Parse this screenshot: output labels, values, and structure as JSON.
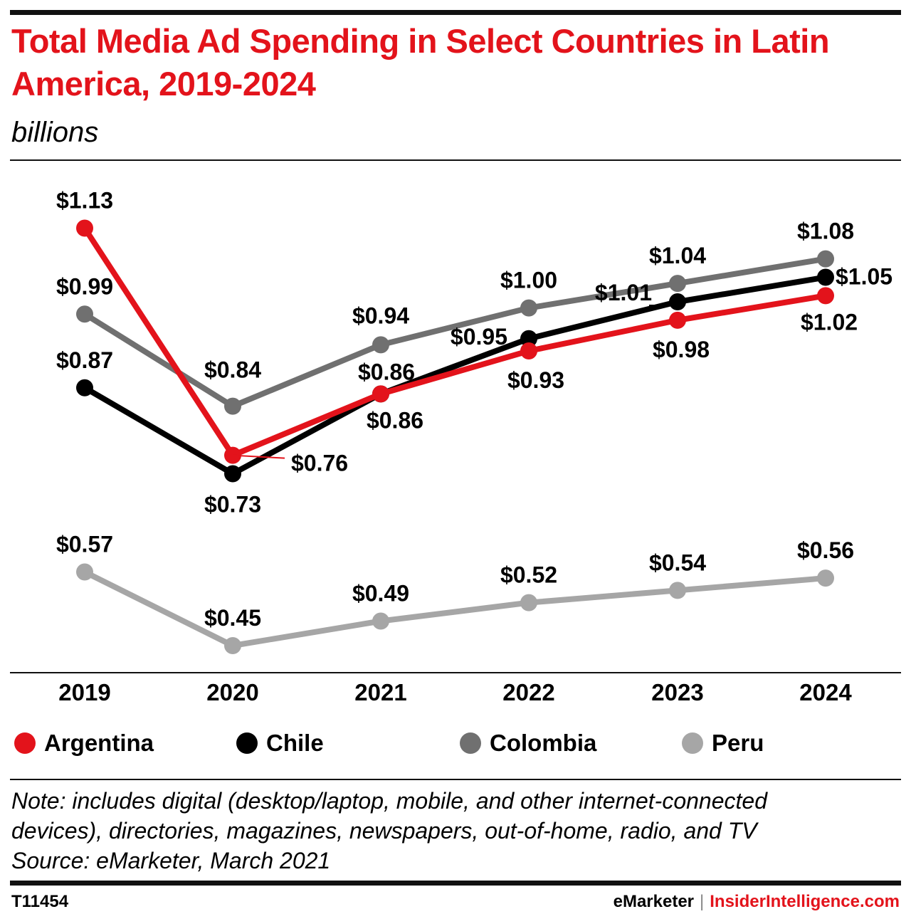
{
  "header": {
    "title": "Total Media Ad Spending in Select Countries in Latin America, 2019-2024",
    "subtitle": "billions"
  },
  "chart_data": {
    "type": "line",
    "title": "Total Media Ad Spending in Select Countries in Latin America, 2019-2024",
    "subtitle": "billions",
    "xlabel": "",
    "ylabel": "",
    "x": [
      "2019",
      "2020",
      "2021",
      "2022",
      "2023",
      "2024"
    ],
    "ylim": [
      0.35,
      1.25
    ],
    "grid": false,
    "legend_position": "bottom",
    "series": [
      {
        "name": "Peru",
        "color": "#a6a6a6",
        "values": [
          0.57,
          0.45,
          0.49,
          0.52,
          0.54,
          0.56
        ],
        "labels": [
          "$0.57",
          "$0.45",
          "$0.49",
          "$0.52",
          "$0.54",
          "$0.56"
        ]
      },
      {
        "name": "Colombia",
        "color": "#707070",
        "values": [
          0.99,
          0.84,
          0.94,
          1.0,
          1.04,
          1.08
        ],
        "labels": [
          "$0.99",
          "$0.84",
          "$0.94",
          "$1.00",
          "$1.04",
          "$1.08"
        ]
      },
      {
        "name": "Chile",
        "color": "#000000",
        "values": [
          0.87,
          0.73,
          0.86,
          0.95,
          1.01,
          1.05
        ],
        "labels": [
          "$0.87",
          "$0.73",
          "$0.86",
          "$0.95",
          "$1.01",
          "$1.05"
        ]
      },
      {
        "name": "Argentina",
        "color": "#e3131b",
        "values": [
          1.13,
          0.76,
          0.86,
          0.93,
          0.98,
          1.02
        ],
        "labels": [
          "$1.13",
          "$0.76",
          "$0.86",
          "$0.93",
          "$0.98",
          "$1.02"
        ]
      }
    ]
  },
  "legend": [
    {
      "label": "Argentina",
      "color": "#e3131b"
    },
    {
      "label": "Chile",
      "color": "#000000"
    },
    {
      "label": "Colombia",
      "color": "#707070"
    },
    {
      "label": "Peru",
      "color": "#a6a6a6"
    }
  ],
  "notes": {
    "line1": "Note: includes digital (desktop/laptop, mobile, and other internet-connected",
    "line2": "devices), directories, magazines, newspapers, out-of-home, radio, and TV",
    "source": "Source: eMarketer, March 2021"
  },
  "footer": {
    "chart_id": "T11454",
    "brand": "eMarketer",
    "separator": "|",
    "site": "InsiderIntelligence.com"
  }
}
